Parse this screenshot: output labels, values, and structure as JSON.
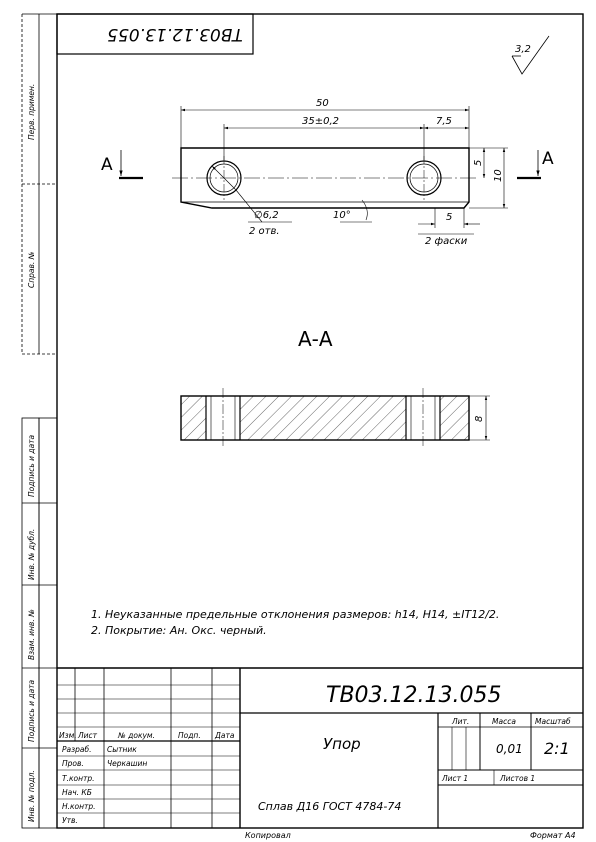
{
  "drawing": {
    "designation": "ТВ03.12.13.055",
    "designation_rotated": "ТВ03.12.13.055",
    "name": "Упор",
    "material": "Сплав Д16 ГОСТ 4784-74",
    "mass": "0,01",
    "scale": "2:1",
    "sheet": "Лист 1",
    "sheets": "Листов 1",
    "copied": "Копировал",
    "format": "Формат А4"
  },
  "surface_roughness": "3,2",
  "side_strip": {
    "perv_primen": "Перв. примен.",
    "sprav_no": "Справ. №",
    "podp_data_1": "Подпись и дата",
    "inv_dubl": "Инв. № дубл.",
    "vzam_inv": "Взам. инв. №",
    "podp_data_2": "Подпись и дата",
    "inv_podl": "Инв. № подл."
  },
  "views": {
    "section_mark": "А",
    "section_title": "А-А",
    "dims": {
      "overall_length": "50",
      "hole_spacing": "35±0,2",
      "edge_to_hole": "7,5",
      "half_height": "5",
      "height": "10",
      "hole_dia": "∅6,2",
      "hole_count": "2 отв.",
      "chamfer_angle": "10°",
      "chamfer_len": "5",
      "chamfer_count": "2 фаски",
      "thickness": "8"
    }
  },
  "notes": [
    "1. Неуказанные предельные отклонения размеров: h14, H14, ±IT12/2.",
    "2. Покрытие: Ан. Окс. черный."
  ],
  "title_block": {
    "col_izm": "Изм.",
    "col_list": "Лист",
    "col_doc": "№ докум.",
    "col_podp": "Подп.",
    "col_date": "Дата",
    "lit": "Лит.",
    "massa": "Масса",
    "masshtab": "Масштаб",
    "roles": [
      {
        "role": "Разраб.",
        "name": "Сытник"
      },
      {
        "role": "Пров.",
        "name": "Черкашин"
      },
      {
        "role": "Т.контр.",
        "name": ""
      },
      {
        "role": "Нач. КБ",
        "name": ""
      },
      {
        "role": "Н.контр.",
        "name": ""
      },
      {
        "role": "Утв.",
        "name": ""
      }
    ]
  }
}
